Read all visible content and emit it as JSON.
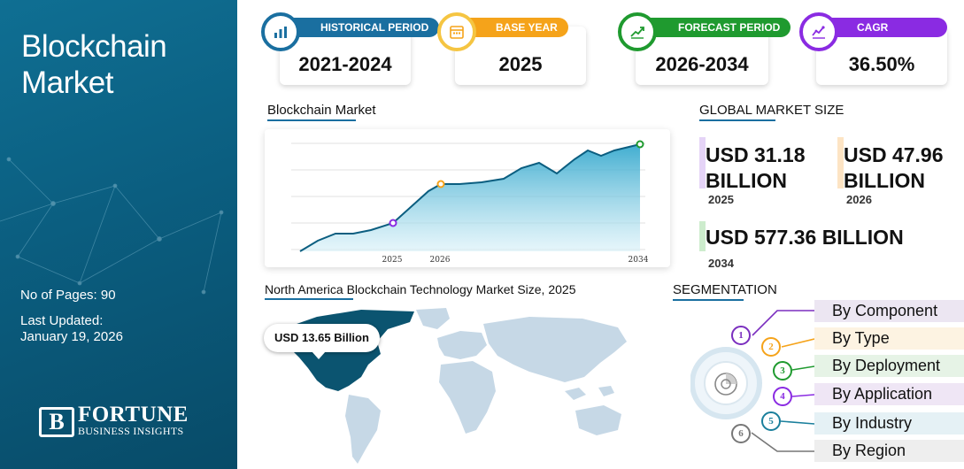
{
  "sidebar": {
    "title": "Blockchain Market",
    "pages": "No of Pages: 90",
    "updated_label": "Last Updated:",
    "updated_date": "January 19, 2026",
    "logo_mark": "B",
    "logo_name": "FORTUNE",
    "logo_tagline": "BUSINESS INSIGHTS"
  },
  "stats": [
    {
      "label": "HISTORICAL PERIOD",
      "value": "2021-2024",
      "color": "#1a6fa0",
      "icon": "bar-chart-icon"
    },
    {
      "label": "BASE YEAR",
      "value": "2025",
      "color": "#f5a31a",
      "icon": "calendar-icon"
    },
    {
      "label": "FORECAST PERIOD",
      "value": "2026-2034",
      "color": "#1f9a2f",
      "icon": "growth-chart-icon"
    },
    {
      "label": "CAGR",
      "value": "36.50%",
      "color": "#8a2be2",
      "icon": "analytics-icon"
    }
  ],
  "chart": {
    "heading": "Blockchain Market"
  },
  "chart_data": {
    "type": "area",
    "x_labels": [
      "2025",
      "2026",
      "2034"
    ],
    "markers": [
      {
        "label": "2025",
        "color": "#8a2be2"
      },
      {
        "label": "2026",
        "color": "#f5a31a"
      },
      {
        "label": "2034",
        "color": "#1f9a2f"
      }
    ],
    "grid": true,
    "series_color": "#1f8fb8"
  },
  "global_market": {
    "heading": "GLOBAL MARKET SIZE",
    "items": [
      {
        "value": "USD 31.18 BILLION",
        "year": "2025",
        "color": "#e5d4f7"
      },
      {
        "value": "USD 47.96 BILLION",
        "year": "2026",
        "color": "#fde4c4"
      },
      {
        "value": "USD 577.36 BILLION",
        "year": "2034",
        "color": "#cdeccd"
      }
    ]
  },
  "map": {
    "heading": "North America Blockchain Technology Market Size, 2025",
    "callout": "USD 13.65 Billion",
    "highlight_color": "#0b5470",
    "base_color": "#c6d8e6"
  },
  "segmentation": {
    "heading": "SEGMENTATION",
    "items": [
      {
        "num": "1",
        "label": "By Component",
        "color": "#7b2fbf",
        "bg": "#ece6f2"
      },
      {
        "num": "2",
        "label": "By Type",
        "color": "#f5a31a",
        "bg": "#fdf3e2"
      },
      {
        "num": "3",
        "label": "By Deployment",
        "color": "#1f9a2f",
        "bg": "#e6f3e6"
      },
      {
        "num": "4",
        "label": "By Application",
        "color": "#8a2be2",
        "bg": "#efe6f5"
      },
      {
        "num": "5",
        "label": "By Industry",
        "color": "#1a7f9c",
        "bg": "#e5f1f5"
      },
      {
        "num": "6",
        "label": "By Region",
        "color": "#777777",
        "bg": "#eeeeee"
      }
    ]
  }
}
